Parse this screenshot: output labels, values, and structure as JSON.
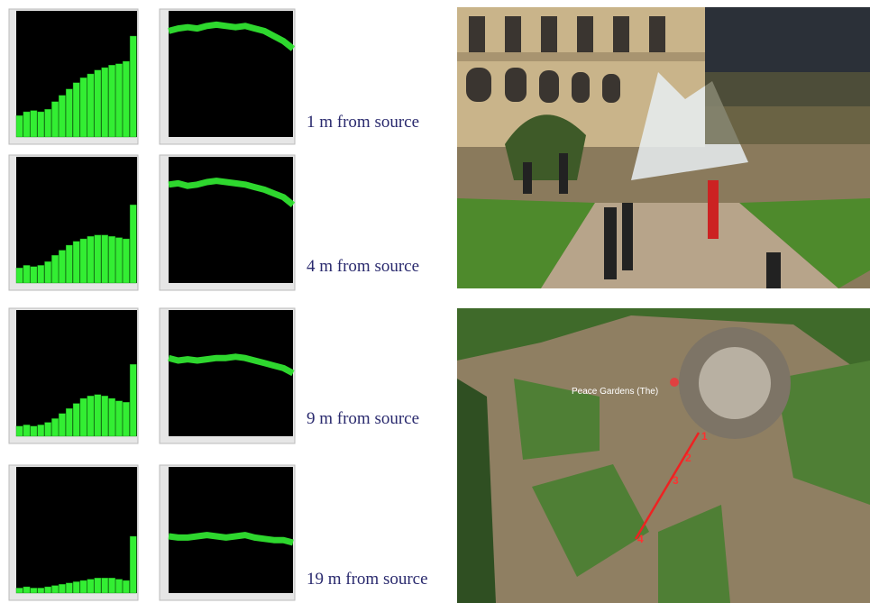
{
  "rows": [
    {
      "caption": "1 m from source",
      "spectrum": [
        17,
        20,
        21,
        20,
        22,
        28,
        33,
        38,
        43,
        47,
        50,
        53,
        55,
        57,
        58,
        60,
        80
      ],
      "trace": [
        84,
        86,
        87,
        86,
        88,
        89,
        88,
        87,
        88,
        86,
        84,
        80,
        76,
        70
      ]
    },
    {
      "caption": "4 m from source",
      "spectrum": [
        12,
        14,
        13,
        14,
        17,
        22,
        26,
        30,
        33,
        35,
        37,
        38,
        38,
        37,
        36,
        35,
        62
      ],
      "trace": [
        78,
        79,
        77,
        78,
        80,
        81,
        80,
        79,
        78,
        76,
        74,
        71,
        68,
        62
      ]
    },
    {
      "caption": "9 m from source",
      "spectrum": [
        8,
        9,
        8,
        9,
        11,
        14,
        18,
        22,
        26,
        30,
        32,
        33,
        32,
        30,
        28,
        27,
        57
      ],
      "trace": [
        62,
        60,
        61,
        60,
        61,
        62,
        62,
        63,
        62,
        60,
        58,
        56,
        54,
        50
      ]
    },
    {
      "caption": "19 m from source",
      "spectrum": [
        4,
        5,
        4,
        4,
        5,
        6,
        7,
        8,
        9,
        10,
        11,
        12,
        12,
        12,
        11,
        10,
        45
      ],
      "trace": [
        45,
        44,
        44,
        45,
        46,
        45,
        44,
        45,
        46,
        44,
        43,
        42,
        42,
        40
      ]
    }
  ],
  "map": {
    "label": "Peace Gardens (The)",
    "markers": [
      "1",
      "2",
      "3",
      "4"
    ]
  }
}
